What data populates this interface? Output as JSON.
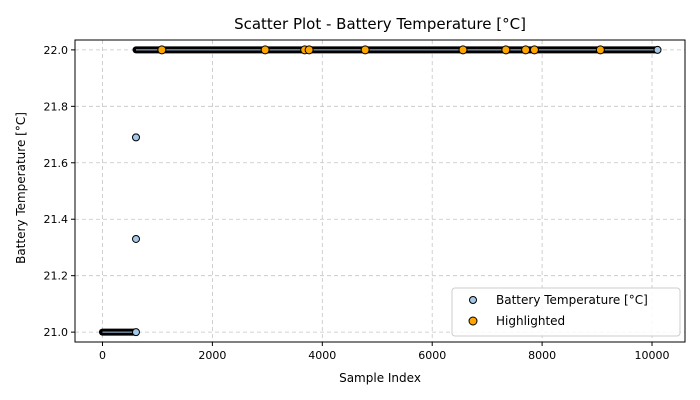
{
  "chart_data": {
    "type": "scatter",
    "title": "Scatter Plot - Battery Temperature [°C]",
    "xlabel": "Sample Index",
    "ylabel": "Battery Temperature [°C]",
    "xlim": [
      -500,
      10600
    ],
    "ylim": [
      20.965,
      22.035
    ],
    "xticks": [
      0,
      2000,
      4000,
      6000,
      8000,
      10000
    ],
    "yticks": [
      21.0,
      21.2,
      21.4,
      21.6,
      21.8,
      22.0
    ],
    "grid": true,
    "legend_position": "lower-right",
    "series": [
      {
        "name": "Battery Temperature [°C]",
        "color": "#a6c8e8",
        "edge_color": "#000000",
        "segments": [
          {
            "x_start": 0,
            "x_end": 610,
            "y": 21.0
          },
          {
            "x_start": 610,
            "x_end": 10100,
            "y": 22.0
          }
        ],
        "points": [
          {
            "x": 610,
            "y": 21.69
          },
          {
            "x": 610,
            "y": 21.33
          },
          {
            "x": 610,
            "y": 21.0
          },
          {
            "x": 10100,
            "y": 22.0
          }
        ]
      },
      {
        "name": "Highlighted",
        "color": "#ffa500",
        "edge_color": "#000000",
        "points": [
          {
            "x": 1080,
            "y": 22.0
          },
          {
            "x": 2960,
            "y": 22.0
          },
          {
            "x": 3680,
            "y": 22.0
          },
          {
            "x": 3760,
            "y": 22.0
          },
          {
            "x": 4780,
            "y": 22.0
          },
          {
            "x": 6560,
            "y": 22.0
          },
          {
            "x": 7340,
            "y": 22.0
          },
          {
            "x": 7700,
            "y": 22.0
          },
          {
            "x": 7860,
            "y": 22.0
          },
          {
            "x": 9060,
            "y": 22.0
          }
        ]
      }
    ]
  }
}
